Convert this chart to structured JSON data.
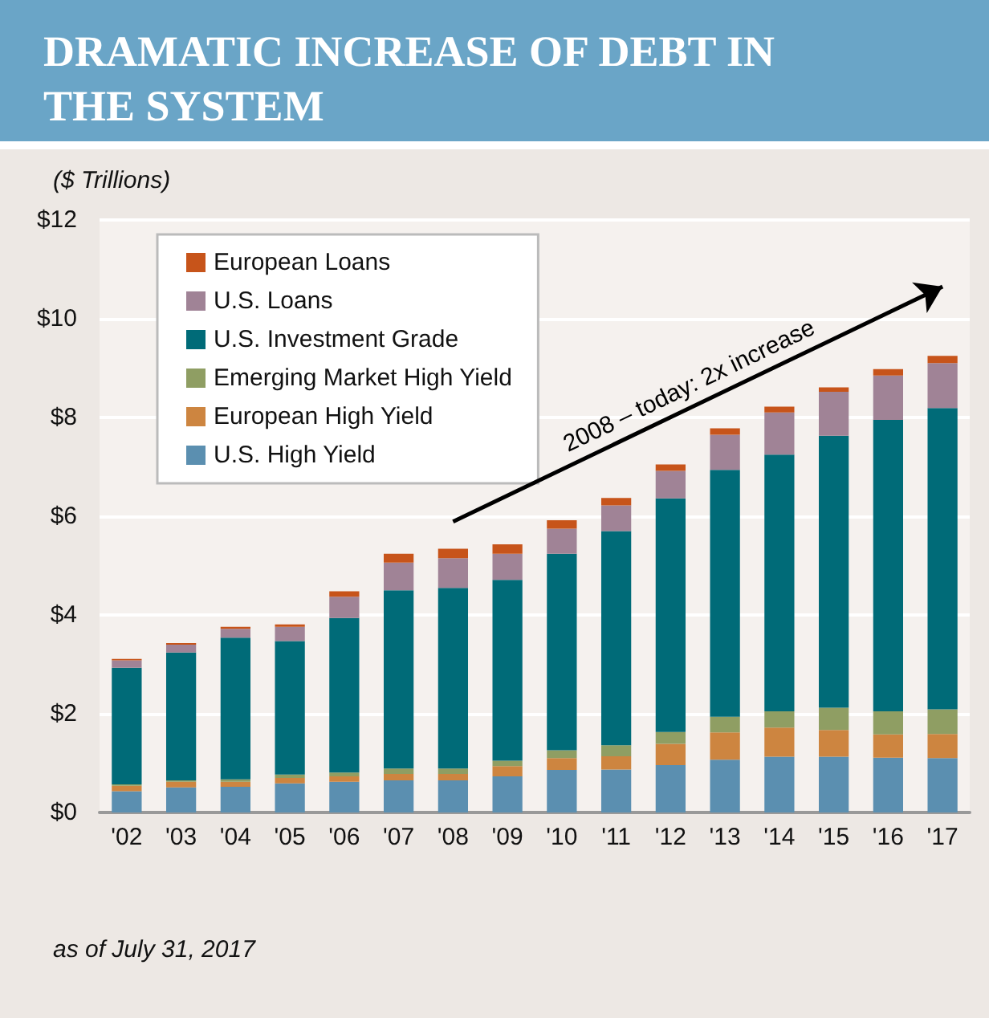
{
  "chart_data": {
    "type": "bar",
    "title": "DRAMATIC INCREASE OF DEBT IN THE SYSTEM",
    "ylabel": "($ Trillions)",
    "categories": [
      "'02",
      "'03",
      "'04",
      "'05",
      "'06",
      "'07",
      "'08",
      "'09",
      "'10",
      "'11",
      "'12",
      "'13",
      "'14",
      "'15",
      "'16",
      "'17"
    ],
    "stacked": true,
    "legend": "top left",
    "grid": "y",
    "ylim": [
      0,
      12
    ],
    "yticks": [
      {
        "value": 0,
        "label": "$0"
      },
      {
        "value": 2,
        "label": "$2"
      },
      {
        "value": 4,
        "label": "$4"
      },
      {
        "value": 6,
        "label": "$6"
      },
      {
        "value": 8,
        "label": "$8"
      },
      {
        "value": 10,
        "label": "$10"
      },
      {
        "value": 12,
        "label": "$12"
      }
    ],
    "series": [
      {
        "name": "U.S. High Yield",
        "color": "#5b8fb0",
        "values": [
          0.43,
          0.51,
          0.52,
          0.59,
          0.62,
          0.65,
          0.65,
          0.73,
          0.86,
          0.87,
          0.96,
          1.07,
          1.13,
          1.13,
          1.11,
          1.1
        ]
      },
      {
        "name": "European High Yield",
        "color": "#cd8540",
        "values": [
          0.11,
          0.11,
          0.1,
          0.11,
          0.11,
          0.13,
          0.13,
          0.21,
          0.24,
          0.27,
          0.43,
          0.55,
          0.59,
          0.54,
          0.47,
          0.49
        ]
      },
      {
        "name": "Emerging Market High Yield",
        "color": "#8f9e63",
        "values": [
          0.03,
          0.03,
          0.05,
          0.07,
          0.08,
          0.11,
          0.11,
          0.11,
          0.16,
          0.22,
          0.24,
          0.32,
          0.33,
          0.45,
          0.47,
          0.5
        ]
      },
      {
        "name": "U.S. Investment Grade",
        "color": "#006b78",
        "values": [
          2.36,
          2.59,
          2.87,
          2.7,
          3.13,
          3.61,
          3.66,
          3.66,
          3.98,
          4.34,
          4.73,
          5.0,
          5.2,
          5.51,
          5.9,
          6.1
        ]
      },
      {
        "name": "U.S. Loans",
        "color": "#a08396",
        "values": [
          0.15,
          0.16,
          0.18,
          0.29,
          0.43,
          0.56,
          0.6,
          0.53,
          0.51,
          0.52,
          0.56,
          0.71,
          0.85,
          0.89,
          0.9,
          0.91
        ]
      },
      {
        "name": "European Loans",
        "color": "#c7541a",
        "values": [
          0.03,
          0.03,
          0.04,
          0.05,
          0.11,
          0.18,
          0.19,
          0.19,
          0.17,
          0.15,
          0.13,
          0.13,
          0.12,
          0.09,
          0.13,
          0.15
        ]
      }
    ],
    "annotations": [
      "2008 – today: 2x increase",
      "as of July 31, 2017"
    ]
  }
}
